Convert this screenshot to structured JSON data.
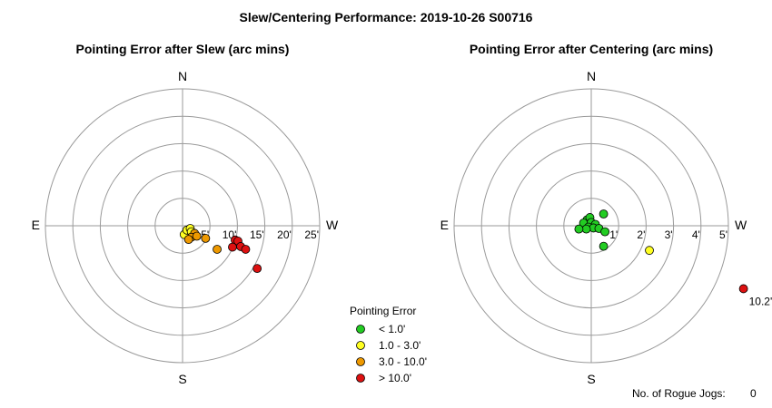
{
  "title": "Slew/Centering Performance: 2019-10-26 S00716",
  "chart_data": [
    {
      "type": "scatter",
      "title": "Pointing Error after Slew (arc mins)",
      "compass": {
        "north": "N",
        "south": "S",
        "east": "E",
        "west": "W"
      },
      "ring_labels": [
        "5'",
        "10'",
        "15'",
        "20'",
        "25'"
      ],
      "rings": [
        5,
        10,
        15,
        20,
        25
      ],
      "r_max": 25,
      "points": [
        {
          "x": 0.3,
          "y": -1.6,
          "level": "yellow"
        },
        {
          "x": 0.8,
          "y": -0.8,
          "level": "yellow"
        },
        {
          "x": 1.4,
          "y": -0.5,
          "level": "yellow"
        },
        {
          "x": 1.6,
          "y": -1.1,
          "level": "yellow"
        },
        {
          "x": 2.2,
          "y": -1.4,
          "level": "orange"
        },
        {
          "x": 1.6,
          "y": -2.1,
          "level": "orange"
        },
        {
          "x": 1.1,
          "y": -2.5,
          "level": "orange"
        },
        {
          "x": 2.6,
          "y": -1.9,
          "level": "orange"
        },
        {
          "x": 4.2,
          "y": -2.3,
          "level": "orange"
        },
        {
          "x": 6.3,
          "y": -4.3,
          "level": "orange"
        },
        {
          "x": 9.6,
          "y": -2.6,
          "level": "red"
        },
        {
          "x": 10.1,
          "y": -2.8,
          "level": "red"
        },
        {
          "x": 10.6,
          "y": -3.8,
          "level": "red"
        },
        {
          "x": 9.1,
          "y": -3.9,
          "level": "red"
        },
        {
          "x": 11.5,
          "y": -4.3,
          "level": "red"
        },
        {
          "x": 13.6,
          "y": -7.8,
          "level": "red"
        }
      ]
    },
    {
      "type": "scatter",
      "title": "Pointing Error after Centering (arc mins)",
      "compass": {
        "north": "N",
        "south": "S",
        "east": "E",
        "west": "W"
      },
      "ring_labels": [
        "1'",
        "2'",
        "3'",
        "4'",
        "5'"
      ],
      "rings": [
        1,
        2,
        3,
        4,
        5
      ],
      "r_max": 5,
      "points": [
        {
          "x": -0.15,
          "y": 0.22,
          "level": "green"
        },
        {
          "x": -0.05,
          "y": 0.3,
          "level": "green"
        },
        {
          "x": -0.28,
          "y": 0.1,
          "level": "green"
        },
        {
          "x": 0.0,
          "y": 0.12,
          "level": "green"
        },
        {
          "x": 0.15,
          "y": 0.05,
          "level": "green"
        },
        {
          "x": -0.1,
          "y": -0.05,
          "level": "green"
        },
        {
          "x": 0.08,
          "y": -0.08,
          "level": "green"
        },
        {
          "x": 0.28,
          "y": -0.1,
          "level": "green"
        },
        {
          "x": -0.18,
          "y": -0.12,
          "level": "green"
        },
        {
          "x": -0.45,
          "y": -0.12,
          "level": "green"
        },
        {
          "x": 0.45,
          "y": 0.43,
          "level": "green"
        },
        {
          "x": 0.5,
          "y": -0.22,
          "level": "green"
        },
        {
          "x": 0.45,
          "y": -0.75,
          "level": "green"
        },
        {
          "x": 2.12,
          "y": -0.9,
          "level": "yellow"
        }
      ],
      "outlier": {
        "x": 5.55,
        "y": -2.3,
        "level": "red",
        "label": "10.2'"
      }
    }
  ],
  "legend": {
    "title": "Pointing Error",
    "items": [
      {
        "label": "< 1.0'",
        "level": "green"
      },
      {
        "label": "1.0 - 3.0'",
        "level": "yellow"
      },
      {
        "label": "3.0 - 10.0'",
        "level": "orange"
      },
      {
        "label": "> 10.0'",
        "level": "red"
      }
    ]
  },
  "colors": {
    "green": "#22cc22",
    "yellow": "#ffff22",
    "orange": "#ee9900",
    "red": "#dd1111"
  },
  "rogue_jogs": {
    "label": "No. of Rogue Jogs:",
    "value": "0"
  }
}
